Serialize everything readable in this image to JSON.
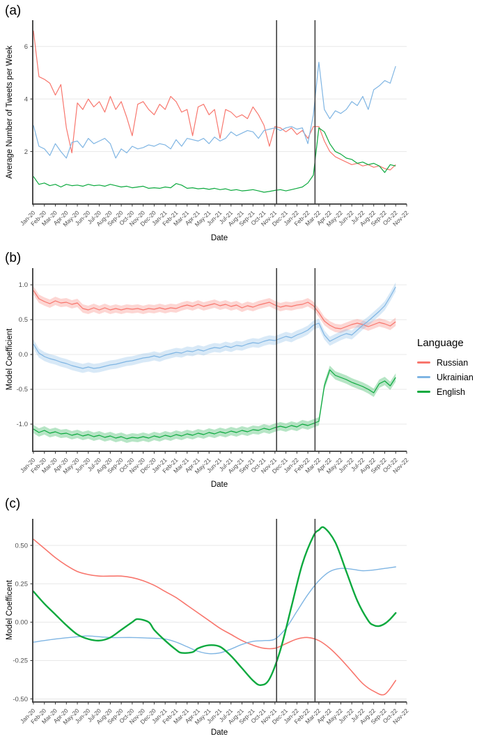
{
  "figure": {
    "panel_labels": {
      "a": "(a)",
      "b": "(b)",
      "c": "(c)"
    },
    "x_axis_title": "Date",
    "event_vlines_months": [
      22.15,
      25.65
    ]
  },
  "legend": {
    "title": "Language",
    "items": [
      {
        "label": "Russian",
        "color": "#F8766D"
      },
      {
        "label": "Ukrainian",
        "color": "#7FB5E3"
      },
      {
        "label": "English",
        "color": "#0CA93E"
      }
    ]
  },
  "chart_data": [
    {
      "panel": "a",
      "type": "line",
      "xlabel": "Date",
      "ylabel": "Average Number of Tweets per Week",
      "ylim": [
        0,
        7.0
      ],
      "yticks": [
        {
          "v": 2,
          "label": "2"
        },
        {
          "v": 4,
          "label": "4"
        },
        {
          "v": 6,
          "label": "6"
        }
      ],
      "x_tick_labels": [
        "Jan-20",
        "Feb-20",
        "Mar-20",
        "Apr-20",
        "May-20",
        "Jun-20",
        "Jul-20",
        "Aug-20",
        "Sep-20",
        "Oct-20",
        "Nov-20",
        "Dec-20",
        "Jan-21",
        "Feb-21",
        "Mar-21",
        "Apr-21",
        "May-21",
        "Jun-21",
        "Jul-21",
        "Aug-21",
        "Sep-21",
        "Oct-21",
        "Nov-21",
        "Dec-21",
        "Jan-22",
        "Feb-22",
        "Mar-22",
        "Apr-22",
        "May-22",
        "Jun-22",
        "Jul-22",
        "Aug-22",
        "Sep-22",
        "Oct-22",
        "Nov-22"
      ],
      "vlines_x": [
        22.15,
        25.65
      ],
      "series": [
        {
          "name": "Russian",
          "color": "#F8766D",
          "line_width": 1.2,
          "x_start": 0,
          "x_step": 0.5,
          "values": [
            6.6,
            4.85,
            4.75,
            4.6,
            4.15,
            4.55,
            2.9,
            1.95,
            3.85,
            3.6,
            4.0,
            3.7,
            3.9,
            3.5,
            4.1,
            3.6,
            3.9,
            3.3,
            2.6,
            3.8,
            3.9,
            3.6,
            3.4,
            3.8,
            3.6,
            4.1,
            3.9,
            3.5,
            3.6,
            2.6,
            3.7,
            3.8,
            3.4,
            3.6,
            2.5,
            3.6,
            3.5,
            3.3,
            3.4,
            3.25,
            3.7,
            3.4,
            3.0,
            2.2,
            2.95,
            2.9,
            2.75,
            2.9,
            2.65,
            2.8,
            2.5,
            2.95,
            2.95,
            2.4,
            2.0,
            1.8,
            1.7,
            1.6,
            1.5,
            1.55,
            1.45,
            1.5,
            1.4,
            1.45,
            1.35,
            1.3,
            1.5
          ]
        },
        {
          "name": "Ukrainian",
          "color": "#7FB5E3",
          "line_width": 1.2,
          "x_start": 0,
          "x_step": 0.5,
          "values": [
            3.0,
            2.2,
            2.1,
            1.85,
            2.3,
            2.0,
            1.75,
            2.35,
            2.4,
            2.15,
            2.5,
            2.3,
            2.4,
            2.5,
            2.3,
            1.75,
            2.1,
            1.95,
            2.2,
            2.1,
            2.15,
            2.25,
            2.2,
            2.3,
            2.25,
            2.1,
            2.45,
            2.2,
            2.5,
            2.45,
            2.4,
            2.5,
            2.3,
            2.55,
            2.4,
            2.5,
            2.75,
            2.6,
            2.7,
            2.8,
            2.75,
            2.5,
            2.8,
            2.85,
            2.9,
            2.8,
            2.9,
            2.95,
            2.85,
            2.9,
            2.3,
            3.4,
            5.4,
            3.6,
            3.25,
            3.55,
            3.45,
            3.6,
            3.9,
            3.75,
            4.1,
            3.6,
            4.35,
            4.5,
            4.7,
            4.6,
            5.25
          ]
        },
        {
          "name": "English",
          "color": "#0CA93E",
          "line_width": 1.2,
          "x_start": 0,
          "x_step": 0.5,
          "values": [
            1.05,
            0.75,
            0.8,
            0.7,
            0.75,
            0.65,
            0.75,
            0.7,
            0.72,
            0.68,
            0.75,
            0.7,
            0.72,
            0.68,
            0.75,
            0.7,
            0.65,
            0.68,
            0.62,
            0.65,
            0.68,
            0.6,
            0.62,
            0.6,
            0.65,
            0.62,
            0.78,
            0.72,
            0.6,
            0.62,
            0.58,
            0.6,
            0.56,
            0.6,
            0.55,
            0.58,
            0.52,
            0.55,
            0.5,
            0.52,
            0.55,
            0.5,
            0.45,
            0.48,
            0.52,
            0.55,
            0.5,
            0.55,
            0.6,
            0.65,
            0.8,
            1.1,
            2.9,
            2.75,
            2.3,
            2.0,
            1.9,
            1.75,
            1.7,
            1.55,
            1.6,
            1.5,
            1.55,
            1.45,
            1.2,
            1.5,
            1.45
          ]
        }
      ]
    },
    {
      "panel": "b",
      "type": "line",
      "xlabel": "Date",
      "ylabel": "Model Coefficient",
      "ylim": [
        -1.39,
        1.24
      ],
      "yticks": [
        {
          "v": 1.0,
          "label": "1.0"
        },
        {
          "v": 0.5,
          "label": "0.5"
        },
        {
          "v": 0.0,
          "label": "0.0"
        },
        {
          "v": -0.5,
          "label": "-0.5"
        },
        {
          "v": -1.0,
          "label": "-1.0"
        }
      ],
      "x_tick_labels": [
        "Jan-20",
        "Feb-20",
        "Mar-20",
        "Apr-20",
        "May-20",
        "Jun-20",
        "Jul-20",
        "Aug-20",
        "Sep-20",
        "Oct-20",
        "Nov-20",
        "Dec-20",
        "Jan-21",
        "Feb-21",
        "Mar-21",
        "Apr-21",
        "May-21",
        "Jun-21",
        "Jul-21",
        "Aug-21",
        "Sep-21",
        "Oct-21",
        "Nov-21",
        "Dec-21",
        "Jan-22",
        "Feb-22",
        "Mar-22",
        "Apr-22",
        "May-22",
        "Jun-22",
        "Jul-22",
        "Aug-22",
        "Sep-22",
        "Oct-22",
        "Nov-22"
      ],
      "vlines_x": [
        22.15,
        25.65
      ],
      "series": [
        {
          "name": "Russian",
          "color": "#F8766D",
          "line_width": 1.2,
          "band_halfwidth": 0.06,
          "x_start": 0,
          "x_step": 0.5,
          "values": [
            0.92,
            0.8,
            0.76,
            0.73,
            0.77,
            0.74,
            0.75,
            0.72,
            0.74,
            0.66,
            0.64,
            0.67,
            0.64,
            0.67,
            0.64,
            0.66,
            0.64,
            0.66,
            0.65,
            0.66,
            0.64,
            0.66,
            0.65,
            0.67,
            0.65,
            0.67,
            0.66,
            0.69,
            0.71,
            0.69,
            0.72,
            0.69,
            0.71,
            0.73,
            0.7,
            0.72,
            0.69,
            0.71,
            0.67,
            0.7,
            0.68,
            0.71,
            0.73,
            0.75,
            0.71,
            0.68,
            0.7,
            0.69,
            0.71,
            0.72,
            0.75,
            0.7,
            0.6,
            0.48,
            0.42,
            0.38,
            0.37,
            0.4,
            0.43,
            0.45,
            0.43,
            0.4,
            0.43,
            0.46,
            0.44,
            0.41,
            0.47
          ]
        },
        {
          "name": "Ukrainian",
          "color": "#7FB5E3",
          "line_width": 1.2,
          "band_halfwidth": 0.065,
          "x_start": 0,
          "x_step": 0.5,
          "values": [
            0.15,
            0.02,
            -0.03,
            -0.06,
            -0.08,
            -0.11,
            -0.13,
            -0.16,
            -0.18,
            -0.2,
            -0.18,
            -0.2,
            -0.19,
            -0.17,
            -0.15,
            -0.14,
            -0.12,
            -0.1,
            -0.09,
            -0.07,
            -0.05,
            -0.04,
            -0.02,
            -0.04,
            -0.01,
            0.01,
            0.03,
            0.02,
            0.05,
            0.04,
            0.07,
            0.05,
            0.08,
            0.1,
            0.09,
            0.12,
            0.1,
            0.13,
            0.12,
            0.15,
            0.17,
            0.16,
            0.19,
            0.21,
            0.2,
            0.23,
            0.26,
            0.24,
            0.28,
            0.31,
            0.35,
            0.42,
            0.45,
            0.28,
            0.19,
            0.23,
            0.27,
            0.3,
            0.28,
            0.35,
            0.42,
            0.48,
            0.55,
            0.62,
            0.7,
            0.83,
            0.97
          ]
        },
        {
          "name": "English",
          "color": "#0CA93E",
          "line_width": 1.2,
          "band_halfwidth": 0.06,
          "x_start": 0,
          "x_step": 0.5,
          "values": [
            -1.07,
            -1.12,
            -1.09,
            -1.13,
            -1.11,
            -1.14,
            -1.13,
            -1.16,
            -1.14,
            -1.17,
            -1.15,
            -1.18,
            -1.16,
            -1.19,
            -1.17,
            -1.2,
            -1.18,
            -1.21,
            -1.19,
            -1.2,
            -1.18,
            -1.2,
            -1.17,
            -1.19,
            -1.16,
            -1.18,
            -1.15,
            -1.17,
            -1.14,
            -1.16,
            -1.13,
            -1.15,
            -1.12,
            -1.14,
            -1.11,
            -1.13,
            -1.1,
            -1.12,
            -1.09,
            -1.11,
            -1.08,
            -1.09,
            -1.06,
            -1.08,
            -1.05,
            -1.03,
            -1.05,
            -1.02,
            -1.04,
            -1.0,
            -1.02,
            -0.99,
            -0.96,
            -0.45,
            -0.22,
            -0.3,
            -0.33,
            -0.36,
            -0.4,
            -0.43,
            -0.46,
            -0.5,
            -0.55,
            -0.42,
            -0.38,
            -0.45,
            -0.33
          ]
        }
      ]
    },
    {
      "panel": "c",
      "type": "line",
      "xlabel": "Date",
      "ylabel": "Model Coefficent",
      "ylim": [
        -0.52,
        0.673
      ],
      "yticks": [
        {
          "v": 0.5,
          "label": "0.50"
        },
        {
          "v": 0.25,
          "label": "0.25"
        },
        {
          "v": 0.0,
          "label": "0.00"
        },
        {
          "v": -0.25,
          "label": "-0.25"
        },
        {
          "v": -0.5,
          "label": "-0.50"
        }
      ],
      "x_tick_labels": [
        "Jan-20",
        "Feb-20",
        "Mar-20",
        "Apr-20",
        "May-20",
        "Jun-20",
        "Jul-20",
        "Aug-20",
        "Sep-20",
        "Oct-20",
        "Nov-20",
        "Dec-20",
        "Jan-21",
        "Feb-21",
        "Mar-21",
        "Apr-21",
        "May-21",
        "Jun-21",
        "Jul-21",
        "Aug-21",
        "Sep-21",
        "Oct-21",
        "Nov-21",
        "Dec-21",
        "Jan-22",
        "Feb-22",
        "Mar-22",
        "Apr-22",
        "May-22",
        "Jun-22",
        "Jul-22",
        "Aug-22",
        "Sep-22",
        "Oct-22",
        "Nov-22"
      ],
      "vlines_x": [
        22.15,
        25.65
      ],
      "series": [
        {
          "name": "Russian",
          "color": "#F8766D",
          "line_width": 1.6,
          "smooth": true,
          "points": [
            [
              0,
              0.54
            ],
            [
              1,
              0.48
            ],
            [
              2,
              0.42
            ],
            [
              3,
              0.37
            ],
            [
              4,
              0.33
            ],
            [
              5,
              0.31
            ],
            [
              6,
              0.3
            ],
            [
              7,
              0.3
            ],
            [
              8,
              0.3
            ],
            [
              9,
              0.29
            ],
            [
              10,
              0.27
            ],
            [
              11,
              0.24
            ],
            [
              12,
              0.2
            ],
            [
              13,
              0.16
            ],
            [
              14,
              0.11
            ],
            [
              15,
              0.06
            ],
            [
              16,
              0.01
            ],
            [
              17,
              -0.04
            ],
            [
              18,
              -0.08
            ],
            [
              19,
              -0.12
            ],
            [
              20,
              -0.15
            ],
            [
              21,
              -0.17
            ],
            [
              22,
              -0.17
            ],
            [
              23,
              -0.14
            ],
            [
              24,
              -0.11
            ],
            [
              25,
              -0.1
            ],
            [
              26,
              -0.12
            ],
            [
              27,
              -0.17
            ],
            [
              28,
              -0.24
            ],
            [
              29,
              -0.32
            ],
            [
              30,
              -0.4
            ],
            [
              31,
              -0.45
            ],
            [
              32,
              -0.47
            ],
            [
              33,
              -0.38
            ]
          ]
        },
        {
          "name": "Ukrainian",
          "color": "#7FB5E3",
          "line_width": 1.4,
          "smooth": true,
          "points": [
            [
              0,
              -0.13
            ],
            [
              2,
              -0.11
            ],
            [
              4,
              -0.095
            ],
            [
              5,
              -0.09
            ],
            [
              7,
              -0.1
            ],
            [
              9,
              -0.1
            ],
            [
              11,
              -0.105
            ],
            [
              12,
              -0.11
            ],
            [
              13,
              -0.13
            ],
            [
              14,
              -0.16
            ],
            [
              15,
              -0.19
            ],
            [
              16,
              -0.205
            ],
            [
              17,
              -0.2
            ],
            [
              18,
              -0.175
            ],
            [
              19,
              -0.145
            ],
            [
              20,
              -0.125
            ],
            [
              21,
              -0.12
            ],
            [
              22,
              -0.11
            ],
            [
              23,
              -0.04
            ],
            [
              24,
              0.07
            ],
            [
              25,
              0.18
            ],
            [
              26,
              0.27
            ],
            [
              27,
              0.33
            ],
            [
              28,
              0.35
            ],
            [
              29,
              0.345
            ],
            [
              30,
              0.335
            ],
            [
              31,
              0.34
            ],
            [
              32,
              0.35
            ],
            [
              33,
              0.36
            ]
          ]
        },
        {
          "name": "English",
          "color": "#0CA93E",
          "line_width": 2.4,
          "smooth": true,
          "points": [
            [
              0,
              0.2
            ],
            [
              1,
              0.12
            ],
            [
              2,
              0.05
            ],
            [
              3,
              -0.02
            ],
            [
              4,
              -0.08
            ],
            [
              5,
              -0.11
            ],
            [
              6,
              -0.12
            ],
            [
              7,
              -0.1
            ],
            [
              8,
              -0.05
            ],
            [
              9,
              0.0
            ],
            [
              9.5,
              0.02
            ],
            [
              10.5,
              0.0
            ],
            [
              11,
              -0.05
            ],
            [
              12,
              -0.12
            ],
            [
              13,
              -0.18
            ],
            [
              13.5,
              -0.2
            ],
            [
              14.5,
              -0.195
            ],
            [
              15,
              -0.17
            ],
            [
              16,
              -0.15
            ],
            [
              17,
              -0.16
            ],
            [
              18,
              -0.22
            ],
            [
              19,
              -0.3
            ],
            [
              20,
              -0.38
            ],
            [
              20.7,
              -0.41
            ],
            [
              21.5,
              -0.37
            ],
            [
              22.5,
              -0.18
            ],
            [
              23.5,
              0.1
            ],
            [
              24.5,
              0.38
            ],
            [
              25.5,
              0.56
            ],
            [
              26,
              0.6
            ],
            [
              26.5,
              0.615
            ],
            [
              27.5,
              0.52
            ],
            [
              28.5,
              0.33
            ],
            [
              29.5,
              0.14
            ],
            [
              30.5,
              0.01
            ],
            [
              31,
              -0.02
            ],
            [
              31.5,
              -0.025
            ],
            [
              32,
              -0.01
            ],
            [
              32.5,
              0.02
            ],
            [
              33,
              0.06
            ]
          ]
        }
      ]
    }
  ]
}
